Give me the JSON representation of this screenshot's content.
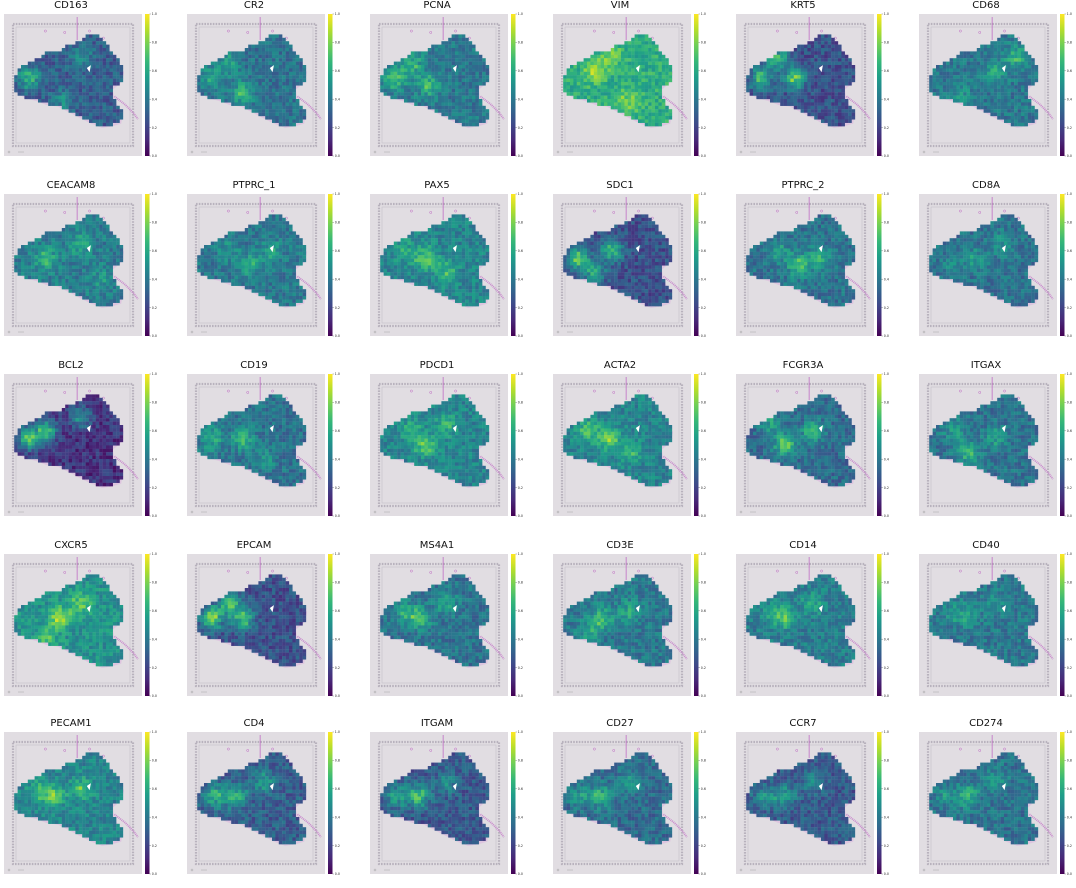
{
  "chart_data": {
    "type": "heatmap",
    "layout": {
      "rows": 5,
      "cols": 6
    },
    "colormap": "viridis",
    "colorbar": {
      "range": [
        0.0,
        1.0
      ],
      "ticks": [
        "0.0",
        "0.2",
        "0.4",
        "0.6",
        "0.8",
        "1.0"
      ]
    },
    "colors": {
      "background": "#ffffff",
      "slide": "#e1dde2",
      "fiducial": "#b8b2bd",
      "tissue_outline": "#c06cc4"
    },
    "panels": [
      {
        "title": "CD163",
        "overall": 0.3,
        "spots": [
          [
            0.18,
            0.45,
            0.72
          ],
          [
            0.55,
            0.3,
            0.55
          ],
          [
            0.42,
            0.6,
            0.5
          ]
        ]
      },
      {
        "title": "CR2",
        "overall": 0.38,
        "spots": [
          [
            0.18,
            0.45,
            0.65
          ],
          [
            0.4,
            0.55,
            0.7
          ],
          [
            0.3,
            0.35,
            0.6
          ]
        ]
      },
      {
        "title": "PCNA",
        "overall": 0.4,
        "spots": [
          [
            0.18,
            0.45,
            0.8
          ],
          [
            0.42,
            0.5,
            0.75
          ],
          [
            0.3,
            0.35,
            0.7
          ]
        ]
      },
      {
        "title": "VIM",
        "overall": 0.62,
        "spots": [
          [
            0.3,
            0.4,
            0.9
          ],
          [
            0.55,
            0.6,
            0.85
          ],
          [
            0.42,
            0.3,
            0.8
          ]
        ]
      },
      {
        "title": "KRT5",
        "overall": 0.25,
        "spots": [
          [
            0.18,
            0.45,
            0.75
          ],
          [
            0.42,
            0.45,
            0.8
          ],
          [
            0.3,
            0.32,
            0.7
          ]
        ]
      },
      {
        "title": "CD68",
        "overall": 0.4,
        "spots": [
          [
            0.55,
            0.4,
            0.65
          ],
          [
            0.7,
            0.3,
            0.7
          ],
          [
            0.3,
            0.55,
            0.55
          ]
        ]
      },
      {
        "title": "CEACAM8",
        "overall": 0.42,
        "spots": [
          [
            0.3,
            0.45,
            0.7
          ],
          [
            0.55,
            0.35,
            0.65
          ],
          [
            0.7,
            0.6,
            0.55
          ]
        ]
      },
      {
        "title": "PTPRC_1",
        "overall": 0.4,
        "spots": [
          [
            0.45,
            0.5,
            0.65
          ],
          [
            0.6,
            0.4,
            0.6
          ],
          [
            0.3,
            0.4,
            0.55
          ]
        ]
      },
      {
        "title": "PAX5",
        "overall": 0.45,
        "spots": [
          [
            0.4,
            0.45,
            0.8
          ],
          [
            0.55,
            0.55,
            0.7
          ],
          [
            0.25,
            0.4,
            0.65
          ]
        ]
      },
      {
        "title": "SDC1",
        "overall": 0.25,
        "spots": [
          [
            0.18,
            0.45,
            0.8
          ],
          [
            0.42,
            0.4,
            0.75
          ],
          [
            0.3,
            0.55,
            0.7
          ]
        ]
      },
      {
        "title": "PTPRC_2",
        "overall": 0.38,
        "spots": [
          [
            0.45,
            0.5,
            0.75
          ],
          [
            0.3,
            0.4,
            0.6
          ],
          [
            0.6,
            0.45,
            0.65
          ]
        ]
      },
      {
        "title": "CD8A",
        "overall": 0.38,
        "spots": [
          [
            0.4,
            0.45,
            0.55
          ],
          [
            0.6,
            0.35,
            0.55
          ],
          [
            0.25,
            0.5,
            0.5
          ]
        ]
      },
      {
        "title": "BCL2",
        "overall": 0.15,
        "spots": [
          [
            0.18,
            0.45,
            0.8
          ],
          [
            0.3,
            0.4,
            0.75
          ],
          [
            0.55,
            0.3,
            0.55
          ]
        ]
      },
      {
        "title": "CD19",
        "overall": 0.38,
        "spots": [
          [
            0.18,
            0.45,
            0.7
          ],
          [
            0.4,
            0.45,
            0.7
          ],
          [
            0.55,
            0.6,
            0.55
          ]
        ]
      },
      {
        "title": "PDCD1",
        "overall": 0.45,
        "spots": [
          [
            0.4,
            0.5,
            0.8
          ],
          [
            0.55,
            0.35,
            0.7
          ],
          [
            0.3,
            0.4,
            0.7
          ]
        ]
      },
      {
        "title": "ACTA2",
        "overall": 0.45,
        "spots": [
          [
            0.4,
            0.45,
            0.85
          ],
          [
            0.25,
            0.4,
            0.75
          ],
          [
            0.55,
            0.55,
            0.7
          ]
        ]
      },
      {
        "title": "FCGR3A",
        "overall": 0.35,
        "spots": [
          [
            0.35,
            0.5,
            0.8
          ],
          [
            0.55,
            0.4,
            0.7
          ],
          [
            0.25,
            0.35,
            0.6
          ]
        ]
      },
      {
        "title": "ITGAX",
        "overall": 0.38,
        "spots": [
          [
            0.35,
            0.55,
            0.7
          ],
          [
            0.55,
            0.45,
            0.6
          ],
          [
            0.25,
            0.4,
            0.6
          ]
        ]
      },
      {
        "title": "CXCR5",
        "overall": 0.5,
        "spots": [
          [
            0.4,
            0.45,
            0.9
          ],
          [
            0.55,
            0.35,
            0.8
          ],
          [
            0.3,
            0.6,
            0.75
          ]
        ]
      },
      {
        "title": "EPCAM",
        "overall": 0.25,
        "spots": [
          [
            0.18,
            0.45,
            0.85
          ],
          [
            0.4,
            0.45,
            0.8
          ],
          [
            0.3,
            0.35,
            0.75
          ]
        ]
      },
      {
        "title": "MS4A1",
        "overall": 0.38,
        "spots": [
          [
            0.35,
            0.45,
            0.75
          ],
          [
            0.55,
            0.35,
            0.65
          ],
          [
            0.25,
            0.4,
            0.6
          ]
        ]
      },
      {
        "title": "CD3E",
        "overall": 0.4,
        "spots": [
          [
            0.35,
            0.45,
            0.75
          ],
          [
            0.55,
            0.4,
            0.65
          ],
          [
            0.25,
            0.55,
            0.6
          ]
        ]
      },
      {
        "title": "CD14",
        "overall": 0.42,
        "spots": [
          [
            0.35,
            0.45,
            0.75
          ],
          [
            0.55,
            0.35,
            0.65
          ],
          [
            0.25,
            0.4,
            0.6
          ]
        ]
      },
      {
        "title": "CD40",
        "overall": 0.4,
        "spots": [
          [
            0.35,
            0.45,
            0.6
          ],
          [
            0.55,
            0.35,
            0.55
          ],
          [
            0.25,
            0.4,
            0.55
          ]
        ]
      },
      {
        "title": "PECAM1",
        "overall": 0.45,
        "spots": [
          [
            0.35,
            0.45,
            0.85
          ],
          [
            0.55,
            0.4,
            0.75
          ],
          [
            0.25,
            0.4,
            0.65
          ]
        ]
      },
      {
        "title": "CD4",
        "overall": 0.3,
        "spots": [
          [
            0.35,
            0.45,
            0.75
          ],
          [
            0.2,
            0.45,
            0.7
          ],
          [
            0.55,
            0.35,
            0.6
          ]
        ]
      },
      {
        "title": "ITGAM",
        "overall": 0.28,
        "spots": [
          [
            0.35,
            0.45,
            0.75
          ],
          [
            0.2,
            0.45,
            0.65
          ],
          [
            0.55,
            0.35,
            0.55
          ]
        ]
      },
      {
        "title": "CD27",
        "overall": 0.35,
        "spots": [
          [
            0.35,
            0.45,
            0.7
          ],
          [
            0.55,
            0.35,
            0.6
          ],
          [
            0.2,
            0.45,
            0.6
          ]
        ]
      },
      {
        "title": "CCR7",
        "overall": 0.28,
        "spots": [
          [
            0.35,
            0.45,
            0.65
          ],
          [
            0.55,
            0.35,
            0.55
          ],
          [
            0.2,
            0.45,
            0.55
          ]
        ]
      },
      {
        "title": "CD274",
        "overall": 0.38,
        "spots": [
          [
            0.35,
            0.45,
            0.7
          ],
          [
            0.55,
            0.35,
            0.6
          ],
          [
            0.2,
            0.45,
            0.55
          ]
        ]
      }
    ]
  }
}
